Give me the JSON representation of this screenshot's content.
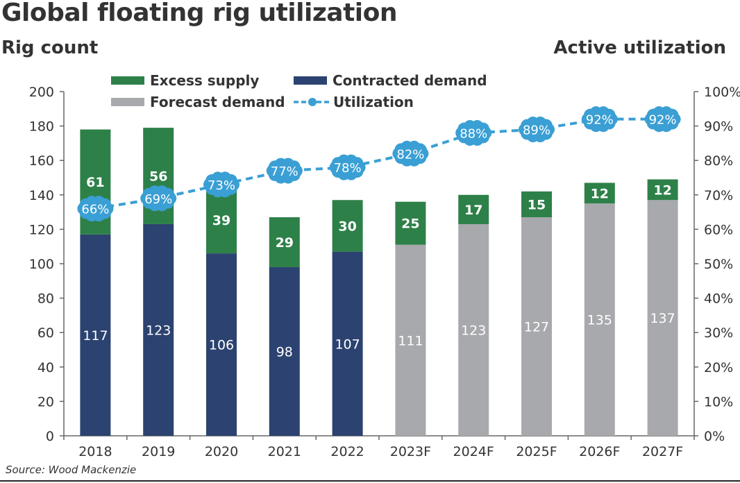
{
  "chart_data": {
    "type": "bar",
    "title": "Global floating rig utilization",
    "ylabel": "Rig count",
    "y2label": "Active utilization",
    "categories": [
      "2018",
      "2019",
      "2020",
      "2021",
      "2022",
      "2023F",
      "2024F",
      "2025F",
      "2026F",
      "2027F"
    ],
    "ylim": [
      0,
      200
    ],
    "yticks": [
      0,
      20,
      40,
      60,
      80,
      100,
      120,
      140,
      160,
      180,
      200
    ],
    "y2lim": [
      0,
      100
    ],
    "y2ticks": [
      "0%",
      "10%",
      "20%",
      "30%",
      "40%",
      "50%",
      "60%",
      "70%",
      "80%",
      "90%",
      "100%"
    ],
    "grid": false,
    "legend_position": "top",
    "series": [
      {
        "name": "Contracted demand",
        "type": "bar",
        "stack": "rigs",
        "color": "#2c4270",
        "values": [
          117,
          123,
          106,
          98,
          107,
          null,
          null,
          null,
          null,
          null
        ]
      },
      {
        "name": "Forecast demand",
        "type": "bar",
        "stack": "rigs",
        "color": "#a7a9ac",
        "values": [
          null,
          null,
          null,
          null,
          null,
          111,
          123,
          127,
          135,
          137
        ]
      },
      {
        "name": "Excess supply",
        "type": "bar",
        "stack": "rigs",
        "color": "#2e8049",
        "values": [
          61,
          56,
          39,
          29,
          30,
          25,
          17,
          15,
          12,
          12
        ]
      },
      {
        "name": "Utilization",
        "type": "line",
        "axis": "right",
        "style": "dashed",
        "color": "#3a9fd4",
        "values": [
          66,
          69,
          73,
          77,
          78,
          82,
          88,
          89,
          92,
          92
        ],
        "labels": [
          "66%",
          "69%",
          "73%",
          "77%",
          "78%",
          "82%",
          "88%",
          "89%",
          "92%",
          "92%"
        ]
      }
    ],
    "source": "Source: Wood Mackenzie"
  }
}
